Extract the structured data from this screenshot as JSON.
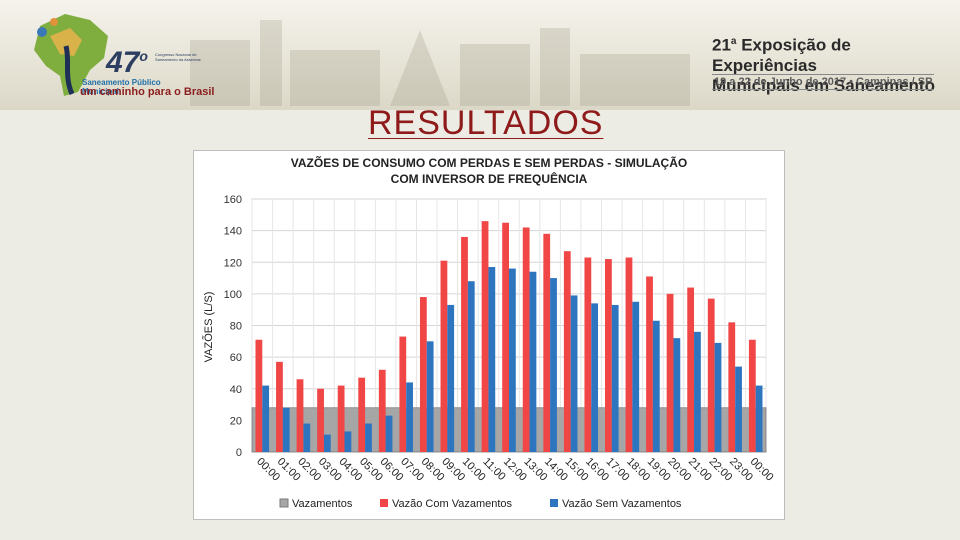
{
  "header": {
    "logo": {
      "number": "47",
      "ordinal": "o",
      "congress_lines": [
        "Congresso Nacional de",
        "Saneamento da Assemae"
      ],
      "saneamento": "Saneamento Público Municipal:",
      "caminho": "um caminho para o Brasil"
    },
    "event": {
      "line1_num": "21",
      "line1_sup": "a",
      "line1_text": "Exposição de Experiências",
      "line2": "Municipais em Saneamento",
      "subtitle": "19 a 22 de Junho de 2017 • Campinas / SP"
    }
  },
  "slide": {
    "heading": "RESULTADOS"
  },
  "colors": {
    "vazamentos": "#a6a6a6",
    "com": "#f04646",
    "sem": "#2e75c0",
    "heading": "#8e1a1a"
  },
  "chart_data": {
    "type": "bar",
    "title_lines": [
      "VAZÕES DE CONSUMO COM PERDAS E SEM PERDAS - SIMULAÇÃO",
      "COM INVERSOR DE FREQUÊNCIA"
    ],
    "ylabel": "VAZÕES (L/S)",
    "xlabel": "",
    "ylim": [
      0,
      160
    ],
    "yticks": [
      0,
      20,
      40,
      60,
      80,
      100,
      120,
      140,
      160
    ],
    "grid": true,
    "legend_position": "bottom",
    "categories": [
      "00:00",
      "01:00",
      "02:00",
      "03:00",
      "04:00",
      "05:00",
      "06:00",
      "07:00",
      "08:00",
      "09:00",
      "10:00",
      "11:00",
      "12:00",
      "13:00",
      "14:00",
      "15:00",
      "16:00",
      "17:00",
      "18:00",
      "19:00",
      "20:00",
      "21:00",
      "22:00",
      "23:00",
      "00:00"
    ],
    "series": [
      {
        "name": "Vazamentos",
        "type": "area",
        "values": [
          28,
          28,
          28,
          28,
          28,
          28,
          28,
          28,
          28,
          28,
          28,
          28,
          28,
          28,
          28,
          28,
          28,
          28,
          28,
          28,
          28,
          28,
          28,
          28,
          28
        ]
      },
      {
        "name": "Vazão Com Vazamentos",
        "type": "bar",
        "values": [
          71,
          57,
          46,
          40,
          42,
          47,
          52,
          73,
          98,
          121,
          136,
          146,
          145,
          142,
          138,
          127,
          123,
          122,
          123,
          111,
          100,
          104,
          97,
          82,
          71
        ]
      },
      {
        "name": "Vazão Sem Vazamentos",
        "type": "bar",
        "values": [
          42,
          28,
          18,
          11,
          13,
          18,
          23,
          44,
          70,
          93,
          108,
          117,
          116,
          114,
          110,
          99,
          94,
          93,
          95,
          83,
          72,
          76,
          69,
          54,
          42
        ]
      }
    ]
  }
}
